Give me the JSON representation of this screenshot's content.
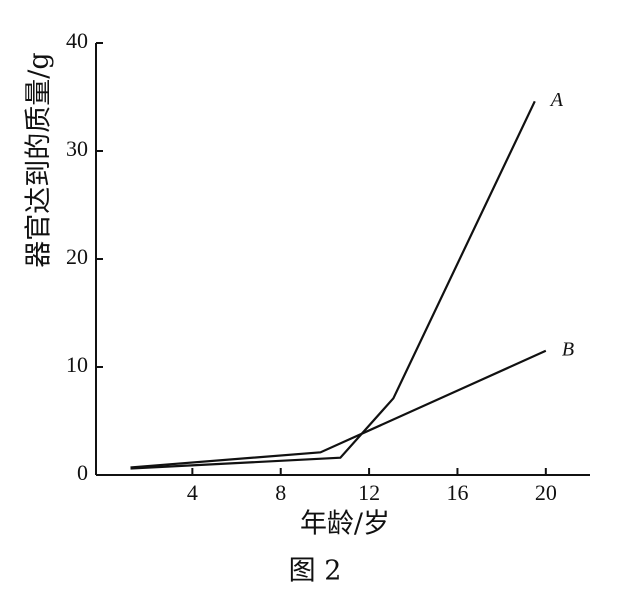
{
  "chart_data": {
    "type": "line",
    "caption": "图 2",
    "x_label": "年龄/岁",
    "y_label": "器官达到的质量/g",
    "xlim": [
      0,
      22
    ],
    "xticks": [
      4,
      8,
      12,
      16,
      20
    ],
    "ylim": [
      0,
      40
    ],
    "yticks": [
      0,
      10,
      20,
      30,
      40
    ],
    "series": [
      {
        "name": "A",
        "color": "#111111",
        "x": [
          1.2,
          10.7,
          13.1,
          19.5
        ],
        "values": [
          0.6,
          1.6,
          7.1,
          34.6
        ]
      },
      {
        "name": "B",
        "color": "#111111",
        "x": [
          1.2,
          9.8,
          20
        ],
        "values": [
          0.7,
          2.1,
          11.5
        ]
      }
    ]
  }
}
